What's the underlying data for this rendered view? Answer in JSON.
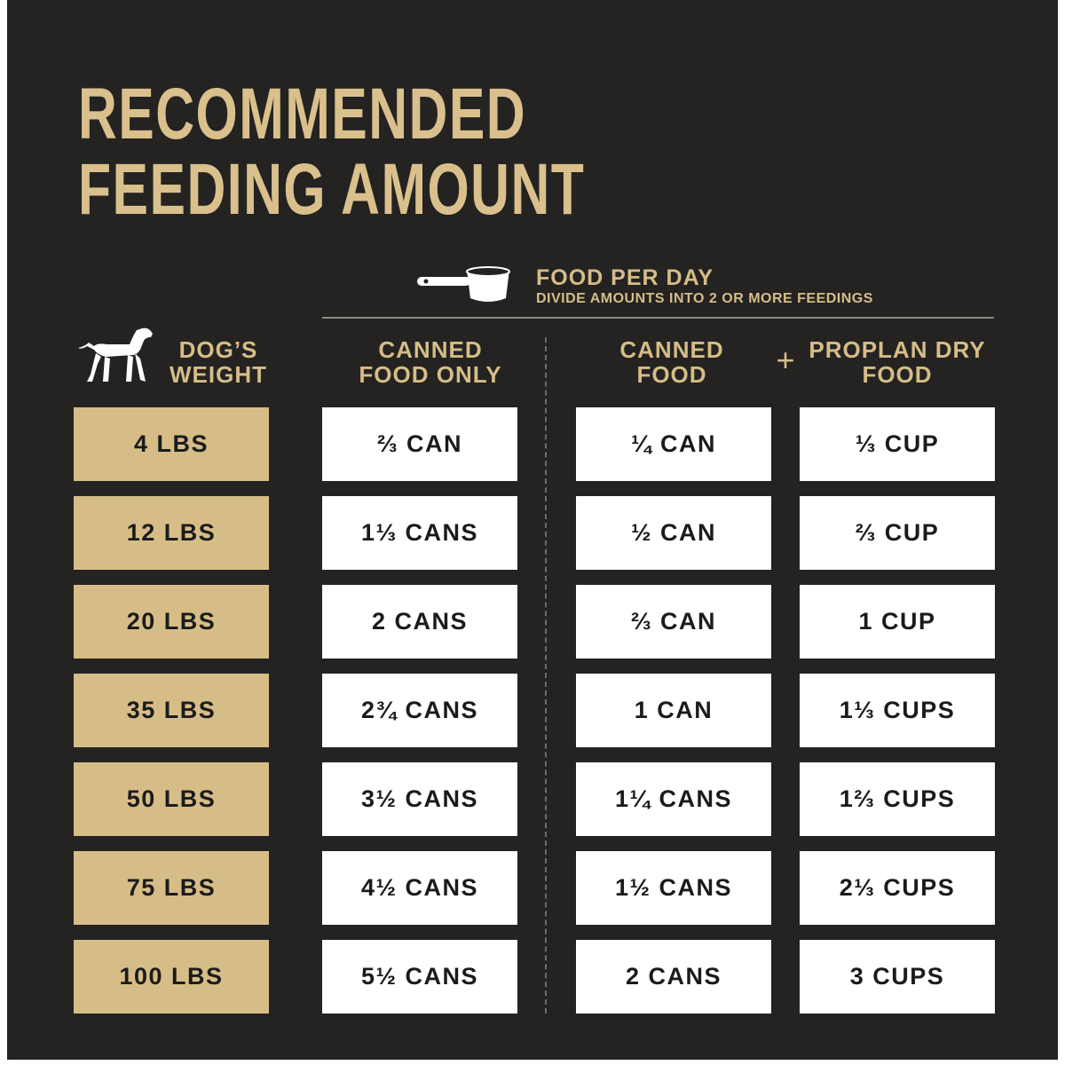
{
  "title": {
    "lines": [
      "RECOMMENDED",
      "FEEDING AMOUNT"
    ]
  },
  "food_header": {
    "title": "FOOD PER DAY",
    "subtitle": "DIVIDE AMOUNTS INTO 2 OR MORE FEEDINGS"
  },
  "columns": {
    "weight": "DOG’S WEIGHT",
    "canned_only": "CANNED FOOD ONLY",
    "canned": "CANNED FOOD",
    "plus": "+",
    "dry": "PROPLAN DRY FOOD"
  },
  "table": {
    "rows": [
      [
        "4 LBS",
        "⅔ CAN",
        "¼ CAN",
        "⅓ CUP"
      ],
      [
        "12 LBS",
        "1⅓ CANS",
        "½ CAN",
        "⅔ CUP"
      ],
      [
        "20 LBS",
        "2 CANS",
        "⅔ CAN",
        "1 CUP"
      ],
      [
        "35 LBS",
        "2¾ CANS",
        "1 CAN",
        "1⅓ CUPS"
      ],
      [
        "50 LBS",
        "3½ CANS",
        "1¼ CANS",
        "1⅔ CUPS"
      ],
      [
        "75 LBS",
        "4½ CANS",
        "1½ CANS",
        "2⅓ CUPS"
      ],
      [
        "100 LBS",
        "5½ CANS",
        "2 CANS",
        "3 CUPS"
      ]
    ]
  }
}
